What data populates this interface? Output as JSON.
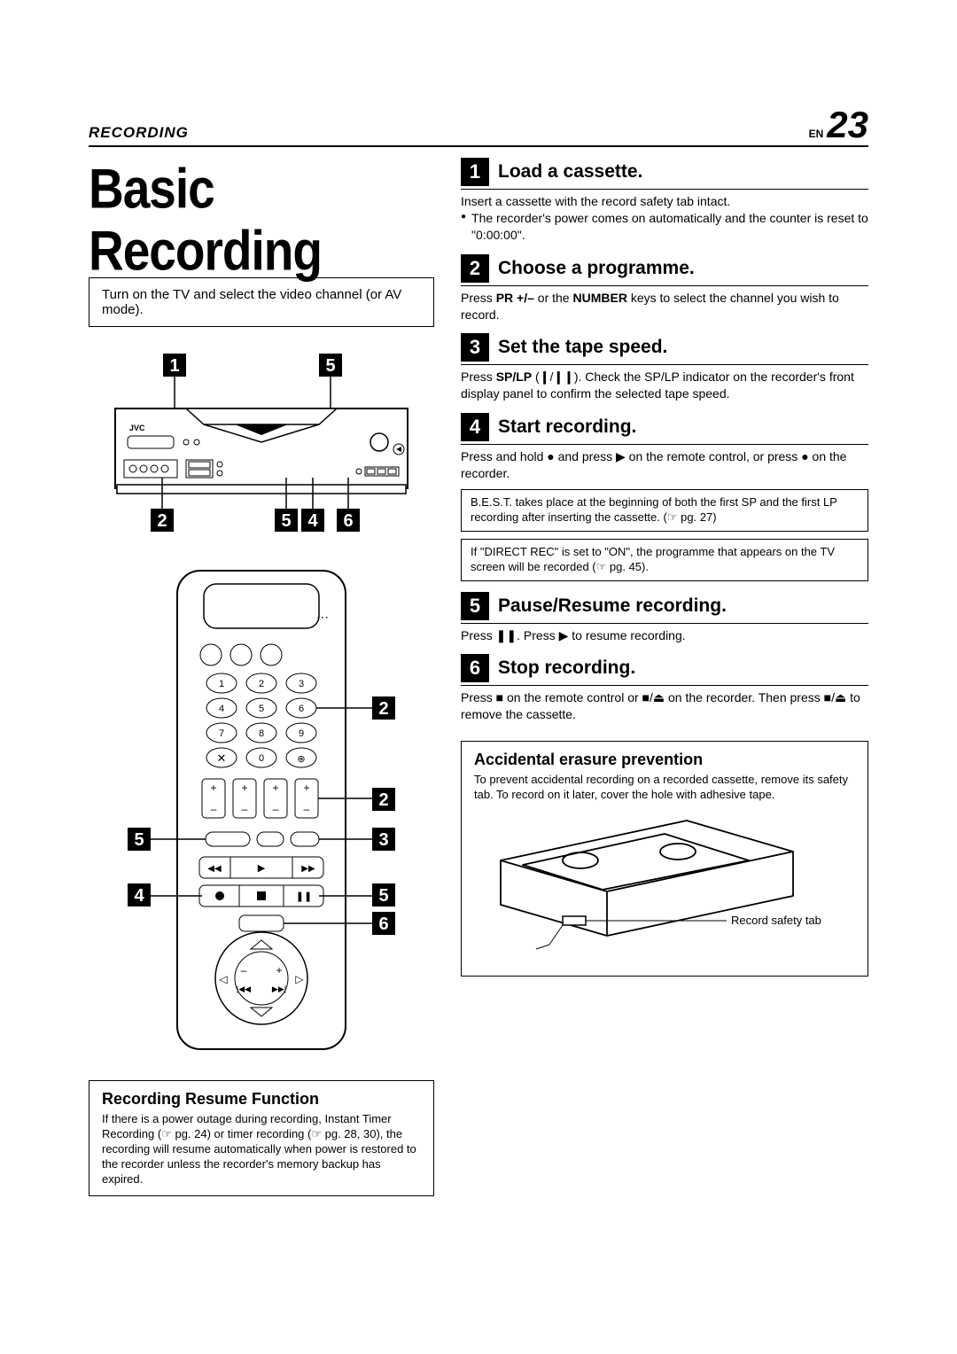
{
  "header": {
    "section": "RECORDING",
    "lang": "EN",
    "page": "23"
  },
  "title": "Basic Recording",
  "intro": "Turn on the TV and select the video channel (or AV mode).",
  "steps": [
    {
      "num": "1",
      "title": "Load a cassette.",
      "body_html": "Insert a cassette with the record safety tab intact.",
      "bullets": [
        "The recorder's power comes on automatically and the counter is reset to \"0:00:00\"."
      ]
    },
    {
      "num": "2",
      "title": "Choose a programme.",
      "body_html": "Press <b>PR +/–</b> or the <b>NUMBER</b> keys to select the channel you wish to record."
    },
    {
      "num": "3",
      "title": "Set the tape speed.",
      "body_html": "Press <b>SP/LP</b> (<b>❙</b>/<b>❙❙</b>). Check the SP/LP indicator on the recorder's front display panel to confirm the selected tape speed."
    },
    {
      "num": "4",
      "title": "Start recording.",
      "body_html": "Press and hold ● and press ▶ on the remote control, or press ● on the recorder.",
      "notes": [
        "B.E.S.T. takes place at the beginning of both the first SP and the first LP recording after inserting the cassette. (☞ pg. 27)",
        "If \"DIRECT REC\" is set to \"ON\", the programme that appears on the TV screen will be recorded (☞ pg. 45)."
      ]
    },
    {
      "num": "5",
      "title": "Pause/Resume recording.",
      "body_html": "Press ❚❚. Press ▶ to resume recording."
    },
    {
      "num": "6",
      "title": "Stop recording.",
      "body_html": "Press ■ on the remote control or ■/⏏ on the recorder. Then press ■/⏏ to remove the cassette."
    }
  ],
  "resume_box": {
    "title": "Recording Resume Function",
    "body": "If there is a power outage during recording, Instant Timer Recording (☞ pg. 24) or timer recording (☞ pg. 28, 30), the recording will resume automatically when power is restored to the recorder unless the recorder's memory backup has expired."
  },
  "erasure_box": {
    "title": "Accidental erasure prevention",
    "body": "To prevent accidental recording on a recorded cassette, remove its safety tab. To record on it later, cover the hole with adhesive tape.",
    "label": "Record safety tab"
  },
  "vcr_callouts": {
    "top": [
      "1",
      "5"
    ],
    "bottom": [
      "2",
      "5",
      "4",
      "6"
    ]
  },
  "remote_callouts": {
    "r1": "2",
    "r2": "2",
    "r3": "3",
    "r4": "5",
    "r5": "6",
    "l1": "5",
    "l2": "4"
  }
}
